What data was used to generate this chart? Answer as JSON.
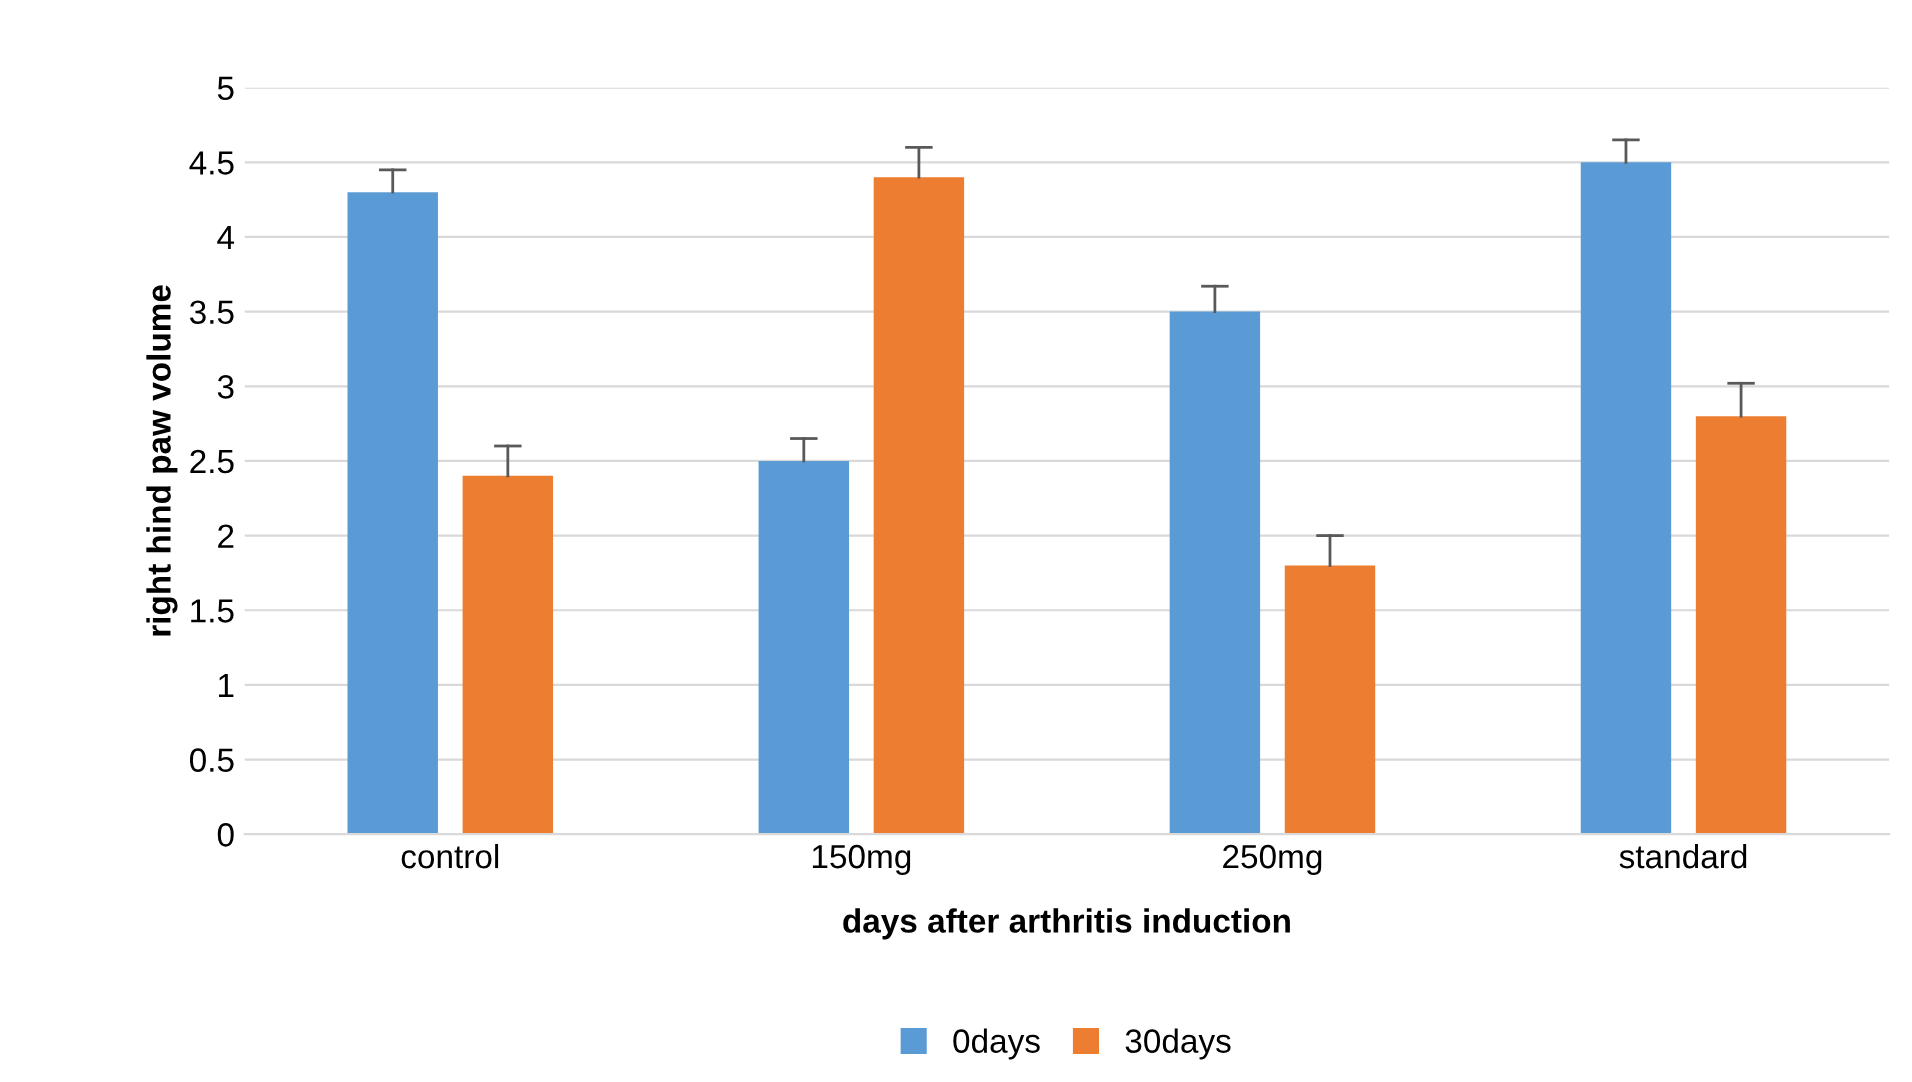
{
  "chart_data": {
    "type": "bar",
    "xlabel": "days after arthritis induction",
    "ylabel": "right hind paw volume",
    "categories": [
      "control",
      "150mg",
      "250mg",
      "standard"
    ],
    "series": [
      {
        "name": "0days",
        "color": "#5b9bd5",
        "values": [
          4.3,
          2.5,
          3.5,
          4.5
        ],
        "errors": [
          [
            4.3,
            4.45
          ],
          [
            2.5,
            2.65
          ],
          [
            3.5,
            3.67
          ],
          [
            4.5,
            4.65
          ]
        ]
      },
      {
        "name": "30days",
        "color": "#ed7d31",
        "values": [
          2.4,
          4.4,
          1.8,
          2.8
        ],
        "errors": [
          [
            2.4,
            2.6
          ],
          [
            4.4,
            4.6
          ],
          [
            1.8,
            2.0
          ],
          [
            2.8,
            3.02
          ]
        ]
      }
    ],
    "ylim": [
      0,
      5
    ],
    "yticks": [
      0,
      0.5,
      1,
      1.5,
      2,
      2.5,
      3,
      3.5,
      4,
      4.5,
      5
    ],
    "grid": "y",
    "legend": "bottom"
  }
}
